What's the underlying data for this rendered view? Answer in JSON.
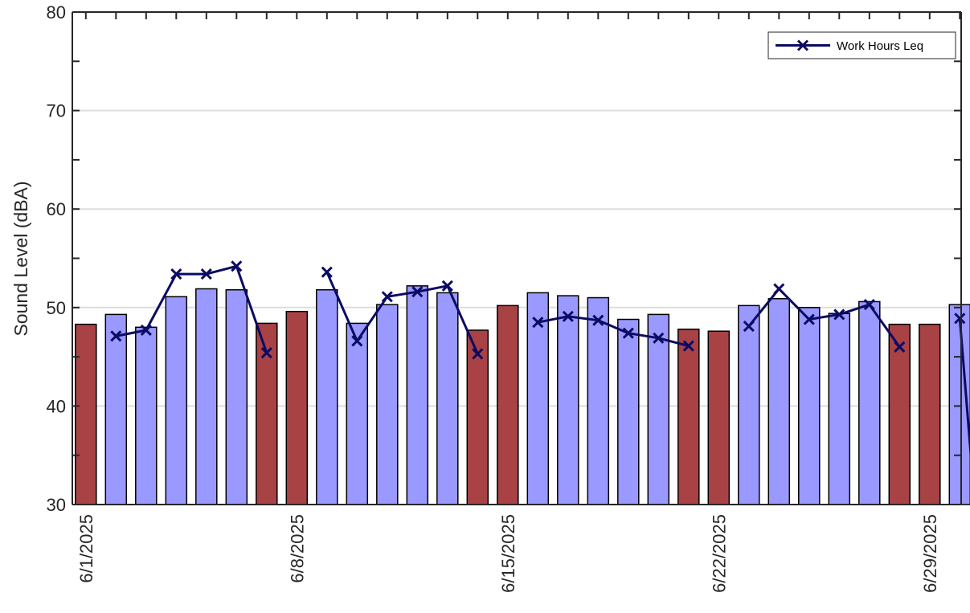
{
  "chart_data": {
    "type": "bar",
    "ylabel": "Sound Level (dBA)",
    "ylim": [
      30,
      80
    ],
    "y_ticks": [
      "30",
      "40",
      "50",
      "60",
      "70",
      "80"
    ],
    "x_tick_labels": [
      {
        "day": 0,
        "label": "6/1/2025"
      },
      {
        "day": 7,
        "label": "6/8/2025"
      },
      {
        "day": 14,
        "label": "6/15/2025"
      },
      {
        "day": 21,
        "label": "6/22/2025"
      },
      {
        "day": 28,
        "label": "6/29/2025"
      }
    ],
    "grid": true,
    "legend_position": "top-right",
    "colors": {
      "weekday": "#9999ff",
      "weekend": "#a84245",
      "line": "#0b0b63",
      "grid": "#dedede"
    },
    "categories": [
      "6/1/2025",
      "6/2/2025",
      "6/3/2025",
      "6/4/2025",
      "6/5/2025",
      "6/6/2025",
      "6/7/2025",
      "6/8/2025",
      "6/9/2025",
      "6/10/2025",
      "6/11/2025",
      "6/12/2025",
      "6/13/2025",
      "6/14/2025",
      "6/15/2025",
      "6/16/2025",
      "6/17/2025",
      "6/18/2025",
      "6/19/2025",
      "6/20/2025",
      "6/21/2025",
      "6/22/2025",
      "6/23/2025",
      "6/24/2025",
      "6/25/2025",
      "6/26/2025",
      "6/27/2025",
      "6/28/2025",
      "6/29/2025",
      "6/30/2025"
    ],
    "bar_values": [
      48.3,
      49.3,
      48.0,
      51.1,
      51.9,
      51.8,
      48.4,
      49.6,
      51.8,
      48.4,
      50.3,
      52.2,
      51.5,
      47.7,
      50.2,
      51.5,
      51.2,
      51.0,
      48.8,
      49.3,
      47.8,
      47.6,
      50.2,
      50.9,
      50.0,
      49.4,
      50.6,
      48.3,
      48.3,
      50.3
    ],
    "weekend_days": [
      0,
      6,
      7,
      13,
      14,
      20,
      21,
      27,
      28
    ],
    "series": [
      {
        "name": "Work Hours Leq",
        "type": "line",
        "segments": [
          {
            "x": [
              1,
              2,
              3,
              4,
              5,
              6
            ],
            "y": [
              47.1,
              47.7,
              53.4,
              53.4,
              54.2,
              45.4
            ]
          },
          {
            "x": [
              8,
              9,
              10,
              11,
              12,
              13
            ],
            "y": [
              53.6,
              46.6,
              51.1,
              51.6,
              52.2,
              45.3
            ]
          },
          {
            "x": [
              15,
              16,
              17,
              18,
              19,
              20
            ],
            "y": [
              48.5,
              49.1,
              48.7,
              47.4,
              46.9,
              46.1
            ]
          },
          {
            "x": [
              22,
              23,
              24,
              25,
              26,
              27
            ],
            "y": [
              48.1,
              51.9,
              48.8,
              49.3,
              50.3,
              46.0
            ]
          },
          {
            "x": [
              29,
              29.5
            ],
            "y": [
              48.9,
              30.0
            ]
          }
        ]
      }
    ]
  }
}
